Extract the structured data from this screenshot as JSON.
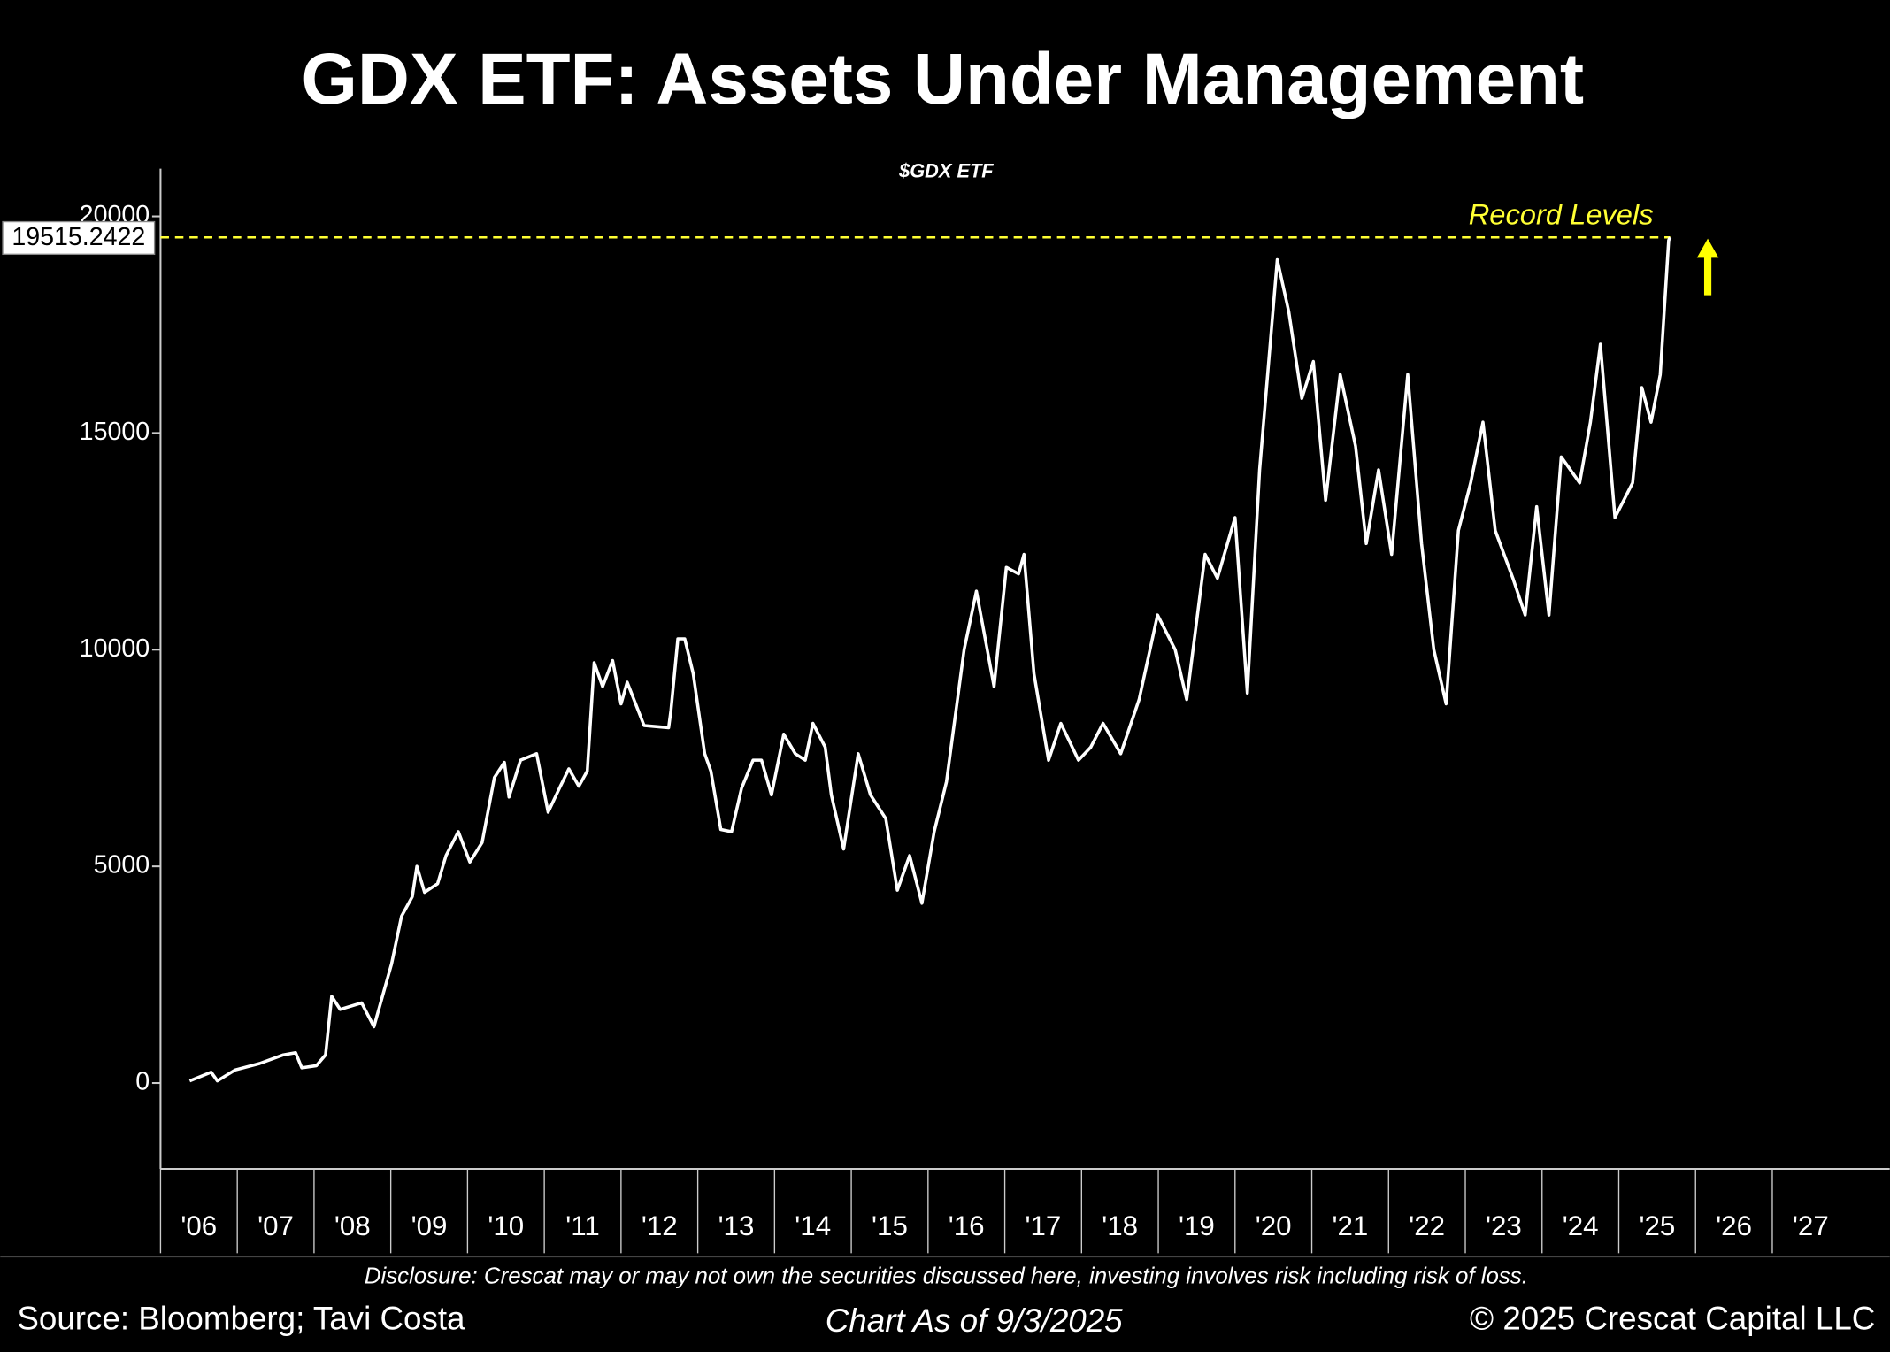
{
  "chart_data": {
    "type": "line",
    "title": "GDX ETF: Assets Under Management",
    "subtitle": "$GDX ETF",
    "annotation": "Record Levels",
    "record_level": 19515.2422,
    "record_color": "#ffff33",
    "color": "#ffffff",
    "x": [
      2006.38,
      2006.66,
      2006.74,
      2006.97,
      2007.29,
      2007.6,
      2007.76,
      2007.84,
      2008.03,
      2008.15,
      2008.23,
      2008.34,
      2008.62,
      2008.78,
      2009.01,
      2009.14,
      2009.28,
      2009.34,
      2009.44,
      2009.61,
      2009.72,
      2009.88,
      2010.03,
      2010.19,
      2010.35,
      2010.48,
      2010.54,
      2010.69,
      2010.9,
      2011.05,
      2011.21,
      2011.32,
      2011.45,
      2011.56,
      2011.65,
      2011.76,
      2011.89,
      2012.0,
      2012.08,
      2012.3,
      2012.62,
      2012.65,
      2012.74,
      2012.83,
      2012.94,
      2013.09,
      2013.17,
      2013.3,
      2013.44,
      2013.57,
      2013.72,
      2013.83,
      2013.96,
      2014.12,
      2014.27,
      2014.4,
      2014.5,
      2014.66,
      2014.74,
      2014.9,
      2015.09,
      2015.25,
      2015.45,
      2015.6,
      2015.76,
      2015.92,
      2016.08,
      2016.24,
      2016.47,
      2016.63,
      2016.86,
      2017.02,
      2017.18,
      2017.25,
      2017.38,
      2017.57,
      2017.73,
      2017.96,
      2018.12,
      2018.28,
      2018.51,
      2018.75,
      2018.99,
      2019.22,
      2019.37,
      2019.61,
      2019.77,
      2020.0,
      2020.16,
      2020.32,
      2020.55,
      2020.7,
      2020.87,
      2021.02,
      2021.18,
      2021.37,
      2021.57,
      2021.71,
      2021.87,
      2022.04,
      2022.25,
      2022.43,
      2022.59,
      2022.75,
      2022.91,
      2023.07,
      2023.23,
      2023.39,
      2023.62,
      2023.78,
      2023.93,
      2024.09,
      2024.25,
      2024.49,
      2024.63,
      2024.76,
      2024.95,
      2025.18,
      2025.3,
      2025.42,
      2025.54,
      2025.65,
      2025.67
    ],
    "values": [
      50,
      250,
      50,
      300,
      450,
      650,
      700,
      350,
      400,
      650,
      2000,
      1700,
      1850,
      1300,
      2750,
      3850,
      4300,
      5000,
      4400,
      4600,
      5250,
      5800,
      5100,
      5550,
      7050,
      7400,
      6600,
      7450,
      7600,
      6250,
      6850,
      7250,
      6850,
      7200,
      9700,
      9150,
      9750,
      8750,
      9250,
      8250,
      8200,
      8600,
      10250,
      10250,
      9450,
      7600,
      7200,
      5850,
      5800,
      6800,
      7450,
      7450,
      6650,
      8050,
      7600,
      7450,
      8300,
      7750,
      6650,
      5400,
      7600,
      6650,
      6100,
      4450,
      5250,
      4150,
      5800,
      6950,
      10000,
      11350,
      9150,
      11900,
      11750,
      12200,
      9450,
      7450,
      8300,
      7450,
      7750,
      8300,
      7600,
      8850,
      10800,
      10000,
      8850,
      12200,
      11650,
      13050,
      9000,
      14150,
      19000,
      17800,
      15800,
      16650,
      13450,
      16350,
      14700,
      12450,
      14150,
      12200,
      16350,
      12450,
      10000,
      8750,
      12750,
      13850,
      15250,
      12750,
      11650,
      10800,
      13300,
      10800,
      14450,
      13850,
      15250,
      17050,
      13050,
      13850,
      16050,
      15250,
      16350,
      19450,
      19515.2422
    ],
    "xlim": [
      2006,
      2028.53
    ],
    "ylim": [
      -1980,
      21100
    ],
    "yticks": [
      0,
      5000,
      10000,
      15000,
      20000
    ],
    "xticks": [
      {
        "value": 2006,
        "label": "'06"
      },
      {
        "value": 2007,
        "label": "'07"
      },
      {
        "value": 2008,
        "label": "'08"
      },
      {
        "value": 2009,
        "label": "'09"
      },
      {
        "value": 2010,
        "label": "'10"
      },
      {
        "value": 2011,
        "label": "'11"
      },
      {
        "value": 2012,
        "label": "'12"
      },
      {
        "value": 2013,
        "label": "'13"
      },
      {
        "value": 2014,
        "label": "'14"
      },
      {
        "value": 2015,
        "label": "'15"
      },
      {
        "value": 2016,
        "label": "'16"
      },
      {
        "value": 2017,
        "label": "'17"
      },
      {
        "value": 2018,
        "label": "'18"
      },
      {
        "value": 2019,
        "label": "'19"
      },
      {
        "value": 2020,
        "label": "'20"
      },
      {
        "value": 2021,
        "label": "'21"
      },
      {
        "value": 2022,
        "label": "'22"
      },
      {
        "value": 2023,
        "label": "'23"
      },
      {
        "value": 2024,
        "label": "'24"
      },
      {
        "value": 2025,
        "label": "'25"
      },
      {
        "value": 2026,
        "label": "'26"
      },
      {
        "value": 2027,
        "label": "'27"
      }
    ]
  },
  "footer": {
    "disclosure": "Disclosure: Crescat may or may not own the securities discussed here, investing involves risk including risk of loss.",
    "source": "Source: Bloomberg; Tavi Costa",
    "date_note": "Chart As of 9/3/2025",
    "copyright": "© 2025 Crescat Capital LLC"
  }
}
